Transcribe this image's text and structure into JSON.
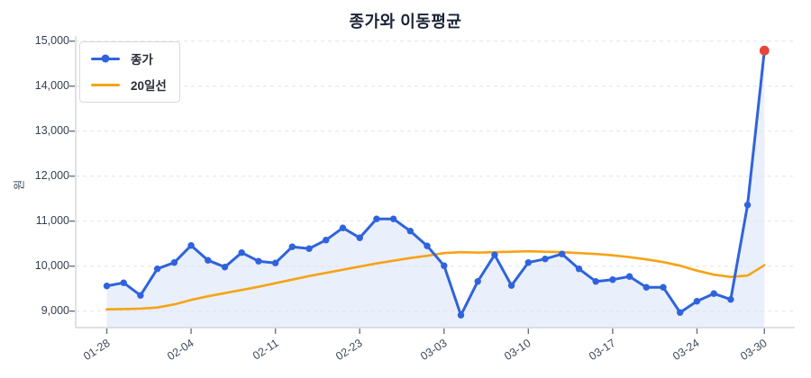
{
  "title": "종가와 이동평균",
  "y_axis": {
    "label": "원"
  },
  "legend": {
    "position": "upper-left",
    "items": [
      {
        "label": "종가",
        "swatch": "line-with-marker",
        "color": "#2f63dd"
      },
      {
        "label": "20일선",
        "swatch": "line",
        "color": "#f6a315"
      }
    ]
  },
  "colors": {
    "close_line": "#2f63dd",
    "ma_line": "#f6a315",
    "last_point": "#e8463a",
    "area_fill": "rgba(47,99,221,0.10)",
    "grid": "#e3e3e3",
    "spine": "#c9ced6",
    "tick_mark": "#6b7280",
    "title_text": "#1b2335",
    "tick_text": "#3e4a5b"
  },
  "chart_data": {
    "type": "line",
    "title": "종가와 이동평균",
    "xlabel": "",
    "ylabel": "원",
    "ylim": [
      8630,
      15120
    ],
    "grid": "horizontal-dashed",
    "legend_position": "upper-left",
    "n_points": 40,
    "y_ticks": [
      9000,
      10000,
      11000,
      12000,
      13000,
      14000,
      15000
    ],
    "y_tick_labels": [
      "9,000",
      "10,000",
      "11,000",
      "12,000",
      "13,000",
      "14,000",
      "15,000"
    ],
    "x_tick_labels": [
      "01-28",
      "02-04",
      "02-11",
      "02-23",
      "03-03",
      "03-10",
      "03-17",
      "03-24",
      "03-30"
    ],
    "x_tick_indices": [
      0,
      5,
      10,
      15,
      20,
      25,
      30,
      35,
      39
    ],
    "series": [
      {
        "name": "종가",
        "type": "line",
        "marker": "circle",
        "color": "#2f63dd",
        "fill_under": true,
        "last_point_highlight": {
          "color": "#e8463a"
        },
        "values": [
          9560,
          9630,
          9350,
          9940,
          10080,
          10460,
          10130,
          9980,
          10300,
          10110,
          10070,
          10430,
          10390,
          10580,
          10850,
          10630,
          11050,
          11050,
          10780,
          10450,
          10010,
          8910,
          9660,
          10250,
          9570,
          10080,
          10160,
          10270,
          9940,
          9660,
          9700,
          9770,
          9530,
          9530,
          8970,
          9220,
          9390,
          9260,
          11360,
          14790
        ]
      },
      {
        "name": "20일선",
        "type": "line",
        "marker": "none",
        "color": "#f6a315",
        "values": [
          9040,
          9045,
          9055,
          9080,
          9150,
          9250,
          9330,
          9400,
          9470,
          9540,
          9620,
          9700,
          9780,
          9850,
          9920,
          9990,
          10060,
          10120,
          10180,
          10230,
          10290,
          10310,
          10300,
          10310,
          10320,
          10330,
          10320,
          10310,
          10290,
          10270,
          10240,
          10200,
          10150,
          10090,
          10010,
          9900,
          9810,
          9760,
          9790,
          10020
        ]
      }
    ]
  }
}
